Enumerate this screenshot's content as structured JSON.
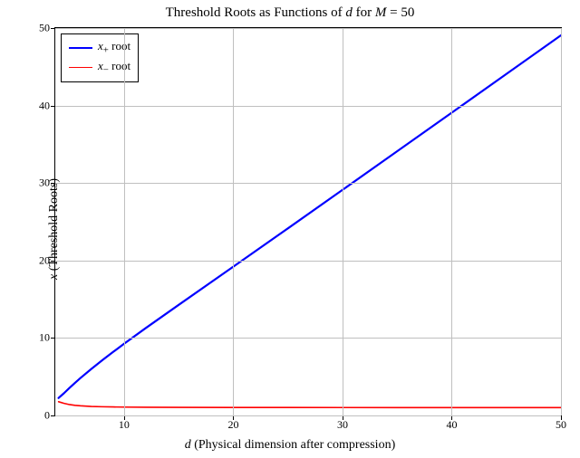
{
  "chart": {
    "type": "line",
    "title_html": "Threshold Roots as Functions of <i>d</i> for <i>M</i> = 50",
    "title_fontsize": 15,
    "xlabel_html": "<i>d</i> (Physical dimension after compression)",
    "ylabel_html": "<i>x</i> (Threshold Roots)",
    "label_fontsize": 14,
    "xlim": [
      3.7,
      50
    ],
    "ylim": [
      0,
      50
    ],
    "xticks": [
      10,
      20,
      30,
      40,
      50
    ],
    "yticks": [
      0,
      10,
      20,
      30,
      40,
      50
    ],
    "grid_color": "#bfbfbf",
    "grid_on": true,
    "background_color": "#ffffff",
    "border_color": "#000000",
    "legend": {
      "position": "upper left",
      "border_color": "#000000",
      "entries": [
        {
          "label_html": "<i>x</i><sub>+</sub> root",
          "color": "#0000ff",
          "linewidth": 2.2
        },
        {
          "label_html": "<i>x</i><sub>&minus;</sub> root",
          "color": "#ff0000",
          "linewidth": 1.6
        }
      ]
    },
    "series": [
      {
        "name": "x_plus",
        "color": "#0000ff",
        "linewidth": 2.2,
        "d": [
          4.0,
          4.5,
          5.0,
          5.5,
          6.0,
          7.0,
          8.0,
          9.0,
          10.0,
          12.0,
          15.0,
          20.0,
          25.0,
          30.0,
          35.0,
          40.0,
          45.0,
          50.0
        ],
        "x": [
          2.252,
          2.876,
          3.558,
          4.203,
          4.824,
          6.003,
          7.122,
          8.201,
          9.253,
          11.294,
          14.274,
          19.206,
          24.148,
          29.115,
          34.095,
          39.08,
          44.07,
          49.061
        ]
      },
      {
        "name": "x_minus",
        "color": "#ff0000",
        "linewidth": 1.6,
        "d": [
          4.0,
          4.5,
          5.0,
          5.5,
          6.0,
          7.0,
          8.0,
          9.0,
          10.0,
          12.0,
          15.0,
          20.0,
          25.0,
          30.0,
          35.0,
          40.0,
          45.0,
          50.0
        ],
        "x": [
          1.776,
          1.565,
          1.405,
          1.309,
          1.244,
          1.166,
          1.124,
          1.098,
          1.081,
          1.062,
          1.047,
          1.033,
          1.026,
          1.021,
          1.018,
          1.016,
          1.014,
          1.013
        ]
      }
    ]
  }
}
